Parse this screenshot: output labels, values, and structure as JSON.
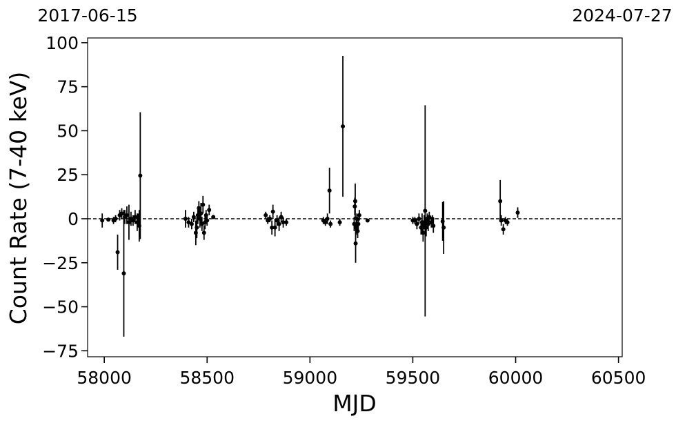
{
  "chart_data": {
    "type": "errorbar",
    "xlabel": "MJD",
    "ylabel": "Count Rate (7-40 keV)",
    "xlim": [
      57919,
      60518
    ],
    "ylim": [
      -78.4,
      102.7
    ],
    "xticks": [
      58000,
      58500,
      59000,
      59500,
      60000,
      60500
    ],
    "yticks": [
      {
        "value": -75,
        "label": "−75"
      },
      {
        "value": -50,
        "label": "−50"
      },
      {
        "value": -25,
        "label": "−25"
      },
      0,
      25,
      50,
      75,
      100
    ],
    "top_ticks": [
      {
        "value": 57919,
        "label": "2017-06-15"
      },
      {
        "value": 60518,
        "label": "2024-07-27"
      }
    ],
    "hline": 0,
    "series": [
      {
        "color": "#000000",
        "x": [
          57990,
          58020,
          58045,
          58055,
          58065,
          58075,
          58085,
          58095,
          58100,
          58110,
          58120,
          58130,
          58140,
          58150,
          58160,
          58165,
          58170,
          58175,
          58395,
          58410,
          58425,
          58435,
          58445,
          58450,
          58455,
          58460,
          58465,
          58470,
          58475,
          58480,
          58485,
          58490,
          58495,
          58500,
          58510,
          58530,
          58785,
          58795,
          58805,
          58815,
          58820,
          58830,
          58840,
          58850,
          58860,
          58870,
          58885,
          59065,
          59075,
          59085,
          59095,
          59100,
          59145,
          59160,
          59215,
          59218,
          59220,
          59222,
          59225,
          59228,
          59232,
          59235,
          59240,
          59280,
          59500,
          59510,
          59520,
          59530,
          59540,
          59545,
          59550,
          59555,
          59560,
          59565,
          59570,
          59575,
          59580,
          59590,
          59595,
          59600,
          59645,
          59650,
          59925,
          59930,
          59940,
          59950,
          59960,
          60010
        ],
        "values": [
          -1,
          -0.5,
          -1,
          0,
          -19,
          2,
          3,
          -31,
          1,
          2,
          -2,
          0,
          -1,
          1,
          -2,
          0,
          -4,
          24.5,
          0,
          -2,
          -3,
          1,
          -8,
          -5,
          2,
          6,
          0,
          3,
          -3,
          8,
          -8,
          -2,
          2,
          -1,
          5,
          1,
          2,
          -1,
          0,
          -5,
          4,
          -5,
          -1,
          -3,
          1,
          -2,
          -2,
          -1,
          -2,
          0,
          16,
          -3,
          -2,
          52.5,
          -3,
          7,
          10,
          -14,
          -5,
          0,
          -7,
          -3,
          2,
          -1,
          -1,
          -1,
          -3,
          0,
          -5,
          -2,
          -8,
          -2,
          4.5,
          -5,
          0,
          -3,
          1,
          -2,
          0,
          -4,
          -1.5,
          -5,
          10,
          -1,
          -6,
          -1,
          -2,
          3.5
        ],
        "errors": [
          4,
          1,
          2,
          2,
          10,
          3,
          3,
          36,
          4,
          5,
          10,
          4,
          3,
          4,
          5,
          3,
          9,
          36,
          5,
          3,
          3,
          3,
          7,
          6,
          5,
          4,
          5,
          6,
          4,
          5,
          4,
          4,
          3,
          3,
          3,
          1,
          2,
          2,
          2,
          4,
          4,
          5,
          3,
          4,
          3,
          3,
          2,
          2,
          2,
          3,
          13,
          2,
          2,
          40,
          4,
          5,
          10,
          11,
          4,
          3,
          4,
          3,
          3,
          1,
          2,
          2,
          3,
          3,
          4,
          5,
          5,
          4,
          60,
          5,
          3,
          4,
          3,
          3,
          2,
          4,
          11,
          15,
          12,
          3,
          3,
          2,
          2,
          3
        ]
      }
    ]
  }
}
